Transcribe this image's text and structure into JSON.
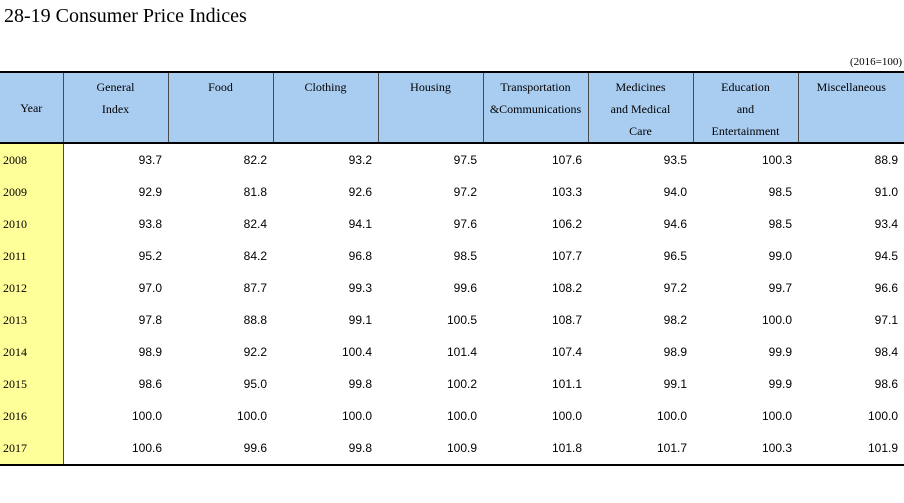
{
  "title": "28-19  Consumer Price Indices",
  "unit_note": "(2016=100)",
  "columns": [
    {
      "key": "year",
      "lines": [
        "Year"
      ]
    },
    {
      "key": "general",
      "lines": [
        "General",
        "Index"
      ]
    },
    {
      "key": "food",
      "lines": [
        "Food"
      ]
    },
    {
      "key": "clothing",
      "lines": [
        "Clothing"
      ]
    },
    {
      "key": "housing",
      "lines": [
        "Housing"
      ]
    },
    {
      "key": "transport",
      "lines": [
        "Transportation",
        "&Communications"
      ]
    },
    {
      "key": "medicines",
      "lines": [
        "Medicines",
        "and Medical",
        "Care"
      ]
    },
    {
      "key": "education",
      "lines": [
        "Education",
        "and",
        "Entertainment"
      ]
    },
    {
      "key": "misc",
      "lines": [
        "Miscellaneous"
      ]
    }
  ],
  "rows": [
    {
      "year": "2008",
      "values": [
        "93.7",
        "82.2",
        "93.2",
        "97.5",
        "107.6",
        "93.5",
        "100.3",
        "88.9"
      ]
    },
    {
      "year": "2009",
      "values": [
        "92.9",
        "81.8",
        "92.6",
        "97.2",
        "103.3",
        "94.0",
        "98.5",
        "91.0"
      ]
    },
    {
      "year": "2010",
      "values": [
        "93.8",
        "82.4",
        "94.1",
        "97.6",
        "106.2",
        "94.6",
        "98.5",
        "93.4"
      ]
    },
    {
      "year": "2011",
      "values": [
        "95.2",
        "84.2",
        "96.8",
        "98.5",
        "107.7",
        "96.5",
        "99.0",
        "94.5"
      ]
    },
    {
      "year": "2012",
      "values": [
        "97.0",
        "87.7",
        "99.3",
        "99.6",
        "108.2",
        "97.2",
        "99.7",
        "96.6"
      ]
    },
    {
      "year": "2013",
      "values": [
        "97.8",
        "88.8",
        "99.1",
        "100.5",
        "108.7",
        "98.2",
        "100.0",
        "97.1"
      ]
    },
    {
      "year": "2014",
      "values": [
        "98.9",
        "92.2",
        "100.4",
        "101.4",
        "107.4",
        "98.9",
        "99.9",
        "98.4"
      ]
    },
    {
      "year": "2015",
      "values": [
        "98.6",
        "95.0",
        "99.8",
        "100.2",
        "101.1",
        "99.1",
        "99.9",
        "98.6"
      ]
    },
    {
      "year": "2016",
      "values": [
        "100.0",
        "100.0",
        "100.0",
        "100.0",
        "100.0",
        "100.0",
        "100.0",
        "100.0"
      ]
    },
    {
      "year": "2017",
      "values": [
        "100.6",
        "99.6",
        "99.8",
        "100.9",
        "101.8",
        "101.7",
        "100.3",
        "101.9"
      ]
    }
  ],
  "colors": {
    "header_bg": "#a9cdf1",
    "year_bg": "#ffff99"
  }
}
